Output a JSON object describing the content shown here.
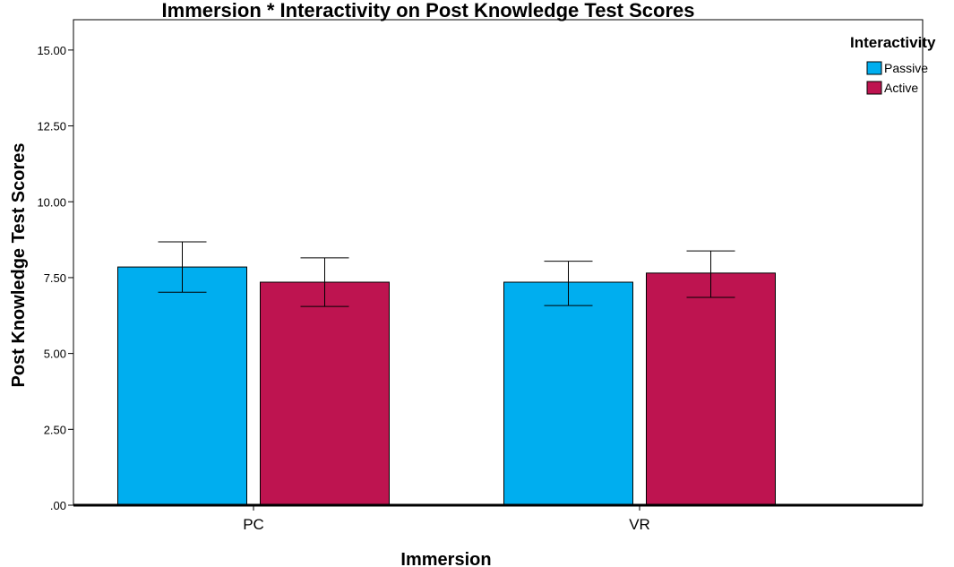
{
  "chart_data": {
    "type": "bar",
    "title": "Immersion * Interactivity on Post Knowledge Test Scores",
    "xlabel": "Immersion",
    "ylabel": "Post Knowledge Test Scores",
    "categories": [
      "PC",
      "VR"
    ],
    "series": [
      {
        "name": "Passive",
        "color": "#00AEEF",
        "values": [
          7.85,
          7.35
        ],
        "error_low": [
          7.02,
          6.58
        ],
        "error_high": [
          8.68,
          8.04
        ]
      },
      {
        "name": "Active",
        "color": "#BE1450",
        "values": [
          7.35,
          7.65
        ],
        "error_low": [
          6.55,
          6.85
        ],
        "error_high": [
          8.15,
          8.38
        ]
      }
    ],
    "ylim": [
      0,
      16
    ],
    "yticks": [
      0,
      2.5,
      5,
      7.5,
      10,
      12.5,
      15
    ],
    "ytick_labels": [
      ".00",
      "2.50",
      "5.00",
      "7.50",
      "10.00",
      "12.50",
      "15.00"
    ],
    "legend": {
      "title": "Interactivity",
      "position": "top-right"
    },
    "grid": false
  }
}
